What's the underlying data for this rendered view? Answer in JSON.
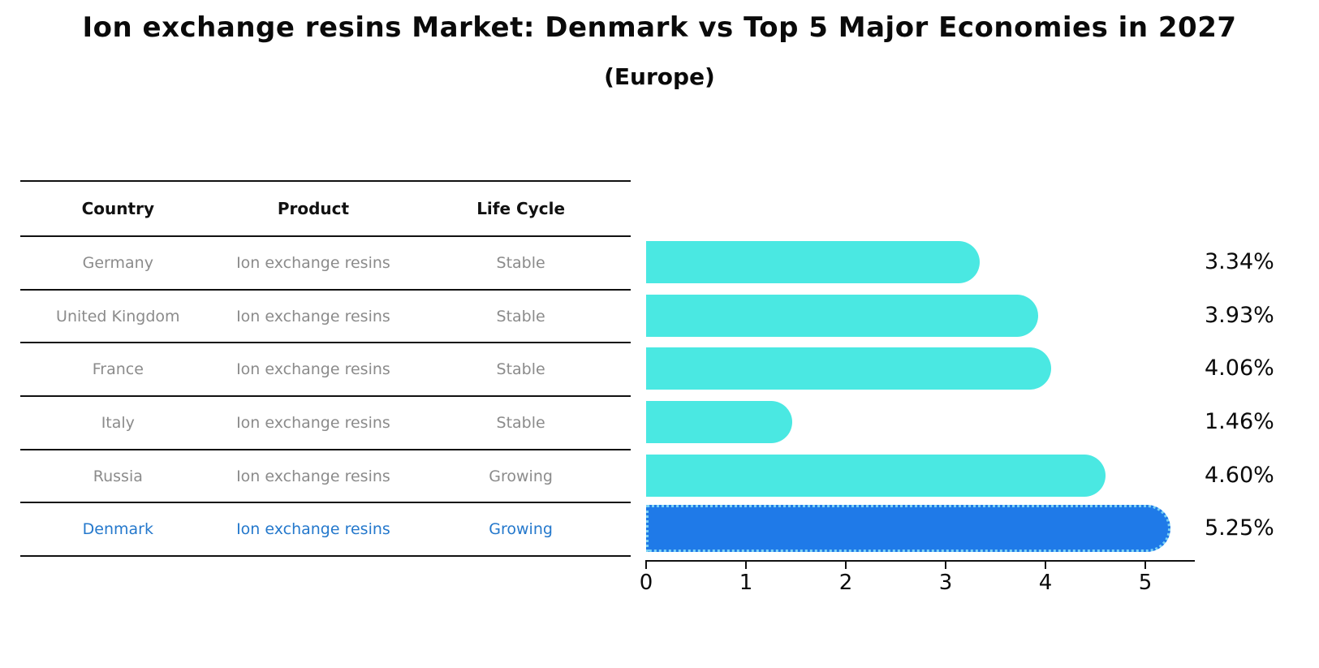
{
  "title": "Ion exchange resins Market: Denmark vs Top 5 Major Economies in 2027",
  "subtitle": "(Europe)",
  "table": {
    "columns": [
      "Country",
      "Product",
      "Life Cycle"
    ],
    "rows": [
      {
        "country": "Germany",
        "product": "Ion exchange resins",
        "life_cycle": "Stable",
        "highlight": false
      },
      {
        "country": "United Kingdom",
        "product": "Ion exchange resins",
        "life_cycle": "Stable",
        "highlight": false
      },
      {
        "country": "France",
        "product": "Ion exchange resins",
        "life_cycle": "Stable",
        "highlight": false
      },
      {
        "country": "Italy",
        "product": "Ion exchange resins",
        "life_cycle": "Stable",
        "highlight": false
      },
      {
        "country": "Russia",
        "product": "Ion exchange resins",
        "life_cycle": "Growing",
        "highlight": false
      },
      {
        "country": "Denmark",
        "product": "Ion exchange resins",
        "life_cycle": "Growing",
        "highlight": true
      }
    ]
  },
  "chart_data": {
    "type": "bar",
    "orientation": "horizontal",
    "title": "Ion exchange resins Market: Denmark vs Top 5 Major Economies in 2027",
    "subtitle": "(Europe)",
    "categories": [
      "Germany",
      "United Kingdom",
      "France",
      "Italy",
      "Russia",
      "Denmark"
    ],
    "values": [
      3.34,
      3.93,
      4.06,
      1.46,
      4.6,
      5.25
    ],
    "value_labels": [
      "3.34%",
      "3.93%",
      "4.06%",
      "1.46%",
      "4.60%",
      "5.25%"
    ],
    "highlight_index": 5,
    "xlim": [
      0,
      5.5
    ],
    "x_ticks": [
      "0",
      "1",
      "2",
      "3",
      "4",
      "5"
    ],
    "grid": false,
    "legend": false
  },
  "colors": {
    "bar_cyan": "#4ae8e2",
    "bar_blue": "#1f7ae8",
    "bar_blue_dotted_border": "#7cd2f4",
    "highlight_text": "#2478cc",
    "row_text": "#8b8b8b",
    "header_text": "#111111",
    "axis": "#111111"
  }
}
